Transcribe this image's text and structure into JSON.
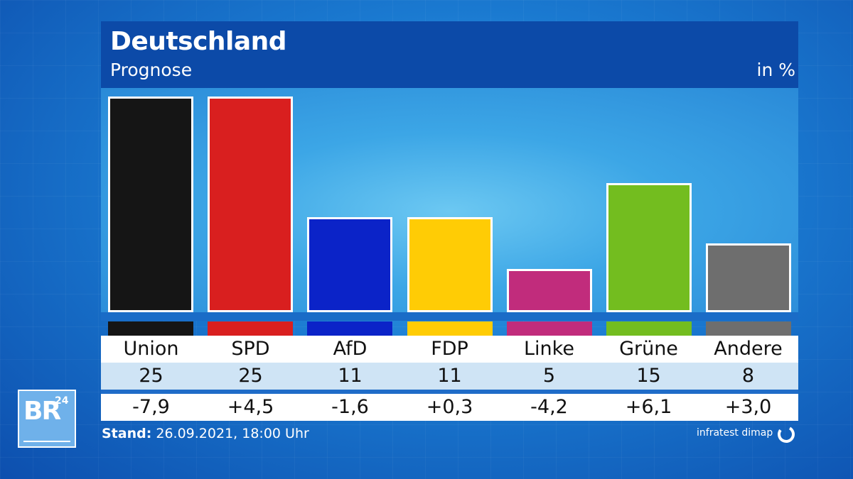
{
  "header": {
    "title": "Deutschland",
    "subtitle": "Prognose",
    "unit": "in %"
  },
  "chart_data": {
    "type": "bar",
    "title": "Deutschland",
    "subtitle": "Prognose",
    "ylabel": "in %",
    "categories": [
      "Union",
      "SPD",
      "AfD",
      "FDP",
      "Linke",
      "Grüne",
      "Andere"
    ],
    "values": [
      25,
      25,
      11,
      11,
      5,
      15,
      8
    ],
    "value_labels": [
      "25",
      "25",
      "11",
      "11",
      "5",
      "15",
      "8"
    ],
    "changes": [
      "-7,9",
      "+4,5",
      "-1,6",
      "+0,3",
      "-4,2",
      "+6,1",
      "+3,0"
    ],
    "colors": [
      "#151515",
      "#d91f1f",
      "#0b23c8",
      "#ffcc05",
      "#c12c7c",
      "#73bd1f",
      "#6e6e6e"
    ],
    "ylim": [
      0,
      25
    ],
    "grid": false,
    "legend": "none"
  },
  "footer": {
    "stand_label": "Stand:",
    "stand_value": "26.09.2021, 18:00 Uhr",
    "source": "infratest dimap"
  },
  "logo": {
    "br_text": "BR",
    "br_number": "24"
  }
}
